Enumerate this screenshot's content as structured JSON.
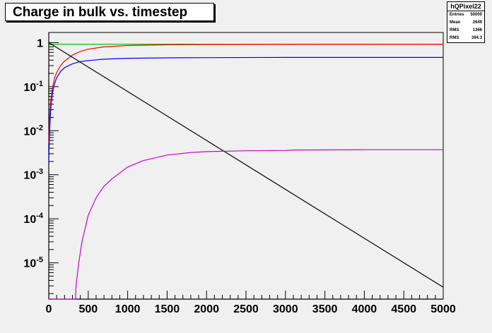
{
  "title": "Charge in bulk vs. timestep",
  "stats": {
    "name": "hQPixel22",
    "rows": [
      {
        "label": "Entries",
        "value": "50000"
      },
      {
        "label": "Mean",
        "value": "2649"
      },
      {
        "label": "RMS",
        "value": "1366"
      },
      {
        "label": "RMS",
        "value": "394.3"
      }
    ]
  },
  "colors": {
    "green": "#00cc00",
    "red": "#ff0000",
    "blue": "#0000ff",
    "black": "#000000",
    "magenta": "#cc00cc",
    "olive": "#999900"
  },
  "chart_data": {
    "type": "line",
    "title": "Charge in bulk vs. timestep",
    "xlabel": "",
    "ylabel": "",
    "xlim": [
      0,
      5000
    ],
    "ylim": [
      1.5e-06,
      1.7
    ],
    "yscale": "log",
    "grid": false,
    "x_ticks": [
      0,
      500,
      1000,
      1500,
      2000,
      2500,
      3000,
      3500,
      4000,
      4500,
      5000
    ],
    "x_tick_labels": [
      "0",
      "500",
      "1000",
      "1500",
      "2000",
      "2500",
      "3000",
      "3500",
      "4000",
      "4500",
      "5000"
    ],
    "y_ticks": [
      {
        "value": 1,
        "base": "1",
        "exp": ""
      },
      {
        "value": 0.1,
        "base": "10",
        "exp": "-1"
      },
      {
        "value": 0.01,
        "base": "10",
        "exp": "-2"
      },
      {
        "value": 0.001,
        "base": "10",
        "exp": "-3"
      },
      {
        "value": 0.0001,
        "base": "10",
        "exp": "-4"
      },
      {
        "value": 1e-05,
        "base": "10",
        "exp": "-5"
      }
    ],
    "series": [
      {
        "color": "green",
        "x": [
          0,
          5000
        ],
        "y": [
          0.92,
          0.92
        ]
      },
      {
        "color": "olive",
        "x": [
          1850,
          5000
        ],
        "y": [
          0.92,
          0.92
        ]
      },
      {
        "color": "red",
        "x": [
          0,
          10,
          25,
          50,
          75,
          100,
          150,
          200,
          300,
          400,
          500,
          700,
          1000,
          1500,
          2000,
          3000,
          5000
        ],
        "y": [
          0.005,
          0.02,
          0.05,
          0.1,
          0.16,
          0.21,
          0.3,
          0.38,
          0.52,
          0.63,
          0.71,
          0.8,
          0.86,
          0.89,
          0.9,
          0.91,
          0.92
        ]
      },
      {
        "color": "blue",
        "x": [
          0,
          5,
          15,
          30,
          50,
          75,
          100,
          150,
          200,
          300,
          400,
          500,
          700,
          1000,
          1500,
          2000,
          3000,
          5000
        ],
        "y": [
          0.002,
          0.005,
          0.015,
          0.04,
          0.08,
          0.12,
          0.16,
          0.22,
          0.27,
          0.33,
          0.37,
          0.39,
          0.42,
          0.44,
          0.45,
          0.455,
          0.46,
          0.46
        ]
      },
      {
        "color": "black",
        "x": [
          0,
          5000
        ],
        "y": [
          1.0,
          2.8e-06
        ]
      },
      {
        "color": "magenta",
        "x": [
          0,
          340,
          345,
          380,
          420,
          500,
          600,
          700,
          800,
          1000,
          1200,
          1500,
          1800,
          2000,
          2500,
          3000,
          3100,
          4000,
          5000
        ],
        "y": [
          1.5e-06,
          1.5e-06,
          3e-06,
          1e-05,
          3e-05,
          0.00012,
          0.0003,
          0.00055,
          0.0008,
          0.0015,
          0.0021,
          0.0028,
          0.0032,
          0.00335,
          0.0035,
          0.00355,
          0.00365,
          0.0037,
          0.0037
        ]
      }
    ]
  }
}
